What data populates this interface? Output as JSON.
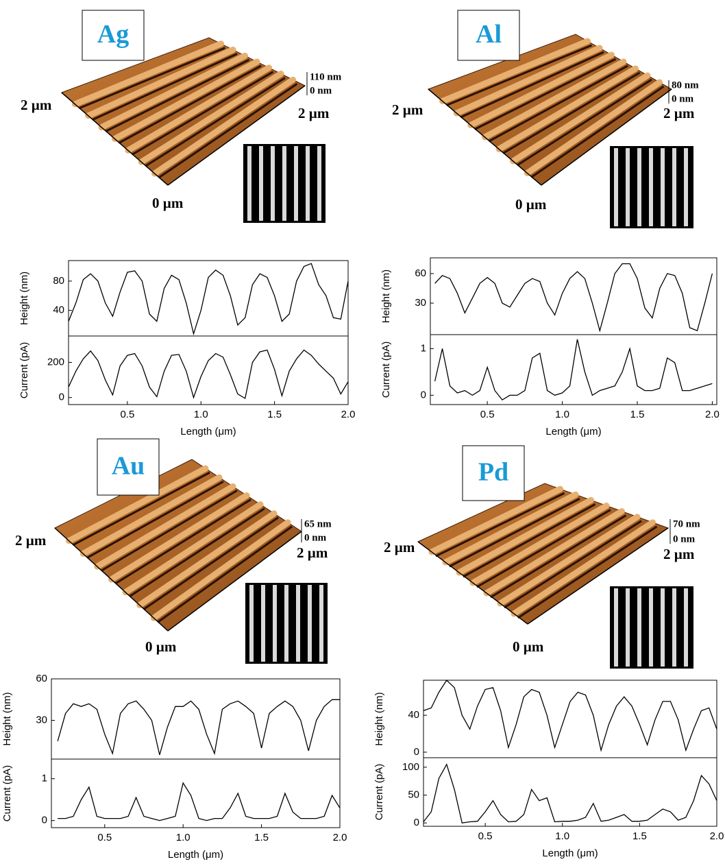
{
  "afm_images": [
    {
      "label": "Ag",
      "z_max": "110 nm",
      "z_min": "0 nm",
      "left_axis": "2 µm",
      "right_axis": "2 µm",
      "origin": "0 µm"
    },
    {
      "label": "Al",
      "z_max": "80 nm",
      "z_min": "0 nm",
      "left_axis": "2 µm",
      "right_axis": "2 µm",
      "origin": "0 µm"
    },
    {
      "label": "Au",
      "z_max": "65 nm",
      "z_min": "0 nm",
      "left_axis": "2 µm",
      "right_axis": "2 µm",
      "origin": "0 µm"
    },
    {
      "label": "Pd",
      "z_max": "70 nm",
      "z_min": "0 nm",
      "left_axis": "2 µm",
      "right_axis": "2 µm",
      "origin": "0 µm"
    }
  ],
  "chart_data": [
    {
      "type": "line",
      "ylabel": "Height (nm)",
      "color": "#000000",
      "xlim": [
        0.1,
        2.0
      ],
      "ylim": [
        5,
        108
      ],
      "yticks": [
        40,
        80
      ],
      "x": [
        0.1,
        0.15,
        0.2,
        0.25,
        0.3,
        0.35,
        0.4,
        0.45,
        0.5,
        0.55,
        0.6,
        0.65,
        0.7,
        0.75,
        0.8,
        0.85,
        0.9,
        0.95,
        1.0,
        1.05,
        1.1,
        1.15,
        1.2,
        1.25,
        1.3,
        1.35,
        1.4,
        1.45,
        1.5,
        1.55,
        1.6,
        1.65,
        1.7,
        1.75,
        1.8,
        1.85,
        1.9,
        1.95,
        2.0
      ],
      "values": [
        25,
        50,
        82,
        90,
        80,
        50,
        32,
        65,
        92,
        94,
        80,
        35,
        25,
        70,
        88,
        82,
        50,
        8,
        40,
        85,
        95,
        88,
        60,
        20,
        30,
        75,
        90,
        85,
        60,
        25,
        35,
        80,
        100,
        104,
        75,
        60,
        30,
        28,
        80
      ]
    },
    {
      "type": "line",
      "ylabel": "Current (pA)",
      "xlabel": "Length (μm)",
      "color": "#000000",
      "xlim": [
        0.1,
        2.0
      ],
      "ylim": [
        -40,
        350
      ],
      "yticks": [
        0,
        200
      ],
      "xticks": [
        0.5,
        {
          "value": 1,
          "label": "1.0"
        },
        1.5,
        {
          "value": 2,
          "label": "2.0"
        }
      ],
      "x": [
        0.1,
        0.15,
        0.2,
        0.25,
        0.3,
        0.35,
        0.4,
        0.45,
        0.5,
        0.55,
        0.6,
        0.65,
        0.7,
        0.75,
        0.8,
        0.85,
        0.9,
        0.95,
        1.0,
        1.05,
        1.1,
        1.15,
        1.2,
        1.25,
        1.3,
        1.35,
        1.4,
        1.45,
        1.5,
        1.55,
        1.6,
        1.65,
        1.7,
        1.75,
        1.8,
        1.85,
        1.9,
        1.95,
        2.0
      ],
      "values": [
        60,
        150,
        220,
        265,
        210,
        100,
        15,
        180,
        240,
        250,
        180,
        60,
        5,
        150,
        240,
        245,
        150,
        0,
        120,
        210,
        250,
        230,
        130,
        20,
        -5,
        200,
        260,
        270,
        160,
        10,
        150,
        220,
        270,
        240,
        190,
        150,
        110,
        20,
        90
      ]
    },
    {
      "type": "line",
      "ylabel": "Height (nm)",
      "color": "#000000",
      "xlim": [
        0.12,
        2.03
      ],
      "ylim": [
        -2,
        76
      ],
      "yticks": [
        30,
        60
      ],
      "x": [
        0.15,
        0.2,
        0.25,
        0.3,
        0.35,
        0.4,
        0.45,
        0.5,
        0.55,
        0.6,
        0.65,
        0.7,
        0.75,
        0.8,
        0.85,
        0.9,
        0.95,
        1.0,
        1.05,
        1.1,
        1.15,
        1.2,
        1.25,
        1.3,
        1.35,
        1.4,
        1.45,
        1.5,
        1.55,
        1.6,
        1.65,
        1.7,
        1.75,
        1.8,
        1.85,
        1.9,
        1.95,
        2.0
      ],
      "values": [
        50,
        58,
        55,
        40,
        20,
        35,
        50,
        56,
        50,
        30,
        26,
        38,
        50,
        55,
        52,
        30,
        18,
        40,
        55,
        62,
        55,
        30,
        2,
        30,
        60,
        70,
        70,
        55,
        25,
        15,
        45,
        60,
        58,
        40,
        5,
        2,
        30,
        60
      ]
    },
    {
      "type": "line",
      "ylabel": "Current (pA)",
      "xlabel": "Length (μm)",
      "color": "#000000",
      "xlim": [
        0.12,
        2.03
      ],
      "ylim": [
        -0.2,
        1.3
      ],
      "yticks": [
        0,
        1
      ],
      "xticks": [
        0.5,
        {
          "value": 1,
          "label": "1.0"
        },
        1.5,
        {
          "value": 2,
          "label": "2.0"
        }
      ],
      "x": [
        0.15,
        0.2,
        0.25,
        0.3,
        0.35,
        0.4,
        0.45,
        0.5,
        0.55,
        0.6,
        0.65,
        0.7,
        0.75,
        0.8,
        0.85,
        0.9,
        0.95,
        1.0,
        1.05,
        1.1,
        1.15,
        1.2,
        1.25,
        1.3,
        1.35,
        1.4,
        1.45,
        1.5,
        1.55,
        1.6,
        1.65,
        1.7,
        1.75,
        1.8,
        1.85,
        1.9,
        1.95,
        2.0
      ],
      "values": [
        0.3,
        1.0,
        0.2,
        0.05,
        0.1,
        0.0,
        0.1,
        0.6,
        0.1,
        -0.1,
        0.0,
        0.0,
        0.1,
        0.8,
        0.9,
        0.1,
        0.0,
        0.05,
        0.2,
        1.2,
        0.5,
        0.0,
        0.1,
        0.15,
        0.2,
        0.5,
        1.0,
        0.2,
        0.1,
        0.1,
        0.15,
        0.8,
        0.7,
        0.1,
        0.1,
        0.15,
        0.2,
        0.25
      ]
    },
    {
      "type": "line",
      "ylabel": "Height (nm)",
      "color": "#000000",
      "xlim": [
        0.16,
        2.0
      ],
      "ylim": [
        2,
        60
      ],
      "yticks": [
        30,
        60
      ],
      "x": [
        0.2,
        0.25,
        0.3,
        0.35,
        0.4,
        0.45,
        0.5,
        0.55,
        0.6,
        0.65,
        0.7,
        0.75,
        0.8,
        0.85,
        0.9,
        0.95,
        1.0,
        1.05,
        1.1,
        1.15,
        1.2,
        1.25,
        1.3,
        1.35,
        1.4,
        1.45,
        1.5,
        1.55,
        1.6,
        1.65,
        1.7,
        1.75,
        1.8,
        1.85,
        1.9,
        1.95,
        2.0
      ],
      "values": [
        15,
        35,
        42,
        40,
        42,
        38,
        20,
        6,
        35,
        42,
        44,
        38,
        30,
        5,
        25,
        40,
        40,
        44,
        38,
        20,
        6,
        38,
        42,
        44,
        40,
        35,
        10,
        35,
        40,
        44,
        40,
        30,
        8,
        30,
        40,
        45,
        45
      ]
    },
    {
      "type": "line",
      "ylabel": "Current (pA)",
      "xlabel": "Length (μm)",
      "color": "#000000",
      "xlim": [
        0.16,
        2.0
      ],
      "ylim": [
        -0.17,
        1.47
      ],
      "yticks": [
        0,
        1
      ],
      "xticks": [
        0.5,
        {
          "value": 1,
          "label": "1.0"
        },
        1.5,
        {
          "value": 2,
          "label": "2.0"
        }
      ],
      "x": [
        0.2,
        0.25,
        0.3,
        0.35,
        0.4,
        0.45,
        0.5,
        0.55,
        0.6,
        0.65,
        0.7,
        0.75,
        0.8,
        0.85,
        0.9,
        0.95,
        1.0,
        1.05,
        1.1,
        1.15,
        1.2,
        1.25,
        1.3,
        1.35,
        1.4,
        1.45,
        1.5,
        1.55,
        1.6,
        1.65,
        1.7,
        1.75,
        1.8,
        1.85,
        1.9,
        1.95,
        2.0
      ],
      "values": [
        0.05,
        0.05,
        0.1,
        0.5,
        0.8,
        0.1,
        0.05,
        0.05,
        0.05,
        0.1,
        0.55,
        0.1,
        0.05,
        0.0,
        0.05,
        0.1,
        0.9,
        0.6,
        0.05,
        0.0,
        0.05,
        0.05,
        0.3,
        0.65,
        0.1,
        0.05,
        0.05,
        0.05,
        0.1,
        0.65,
        0.2,
        0.05,
        0.05,
        0.05,
        0.1,
        0.6,
        0.3
      ]
    },
    {
      "type": "line",
      "ylabel": "Height (nm)",
      "color": "#000000",
      "xlim": [
        0.1,
        2.0
      ],
      "ylim": [
        -6,
        78
      ],
      "yticks": [
        0,
        40
      ],
      "x": [
        0.1,
        0.15,
        0.2,
        0.25,
        0.3,
        0.35,
        0.4,
        0.45,
        0.5,
        0.55,
        0.6,
        0.65,
        0.7,
        0.75,
        0.8,
        0.85,
        0.9,
        0.95,
        1.0,
        1.05,
        1.1,
        1.15,
        1.2,
        1.25,
        1.3,
        1.35,
        1.4,
        1.45,
        1.5,
        1.55,
        1.6,
        1.65,
        1.7,
        1.75,
        1.8,
        1.85,
        1.9,
        1.95,
        2.0
      ],
      "values": [
        45,
        48,
        65,
        78,
        70,
        40,
        25,
        50,
        68,
        70,
        45,
        5,
        30,
        60,
        68,
        65,
        40,
        5,
        30,
        55,
        65,
        62,
        40,
        2,
        30,
        50,
        60,
        50,
        30,
        8,
        35,
        55,
        55,
        35,
        2,
        25,
        45,
        48,
        25
      ]
    },
    {
      "type": "line",
      "ylabel": "Current (pA)",
      "xlabel": "Length (μm)",
      "color": "#000000",
      "xlim": [
        0.1,
        2.0
      ],
      "ylim": [
        -6,
        117
      ],
      "yticks": [
        0,
        50,
        100
      ],
      "xticks": [
        0.5,
        {
          "value": 1,
          "label": "1.0"
        },
        1.5,
        {
          "value": 2,
          "label": "2.0"
        }
      ],
      "x": [
        0.1,
        0.15,
        0.2,
        0.25,
        0.3,
        0.35,
        0.4,
        0.45,
        0.5,
        0.55,
        0.6,
        0.65,
        0.7,
        0.75,
        0.8,
        0.85,
        0.9,
        0.95,
        1.0,
        1.05,
        1.1,
        1.15,
        1.2,
        1.25,
        1.3,
        1.35,
        1.4,
        1.45,
        1.5,
        1.55,
        1.6,
        1.65,
        1.7,
        1.75,
        1.8,
        1.85,
        1.9,
        1.95,
        2.0
      ],
      "values": [
        2,
        20,
        80,
        105,
        60,
        0,
        2,
        3,
        20,
        40,
        15,
        2,
        3,
        15,
        60,
        40,
        45,
        2,
        3,
        3,
        5,
        10,
        35,
        3,
        5,
        10,
        15,
        3,
        3,
        5,
        15,
        25,
        20,
        5,
        10,
        40,
        85,
        70,
        40
      ]
    }
  ]
}
